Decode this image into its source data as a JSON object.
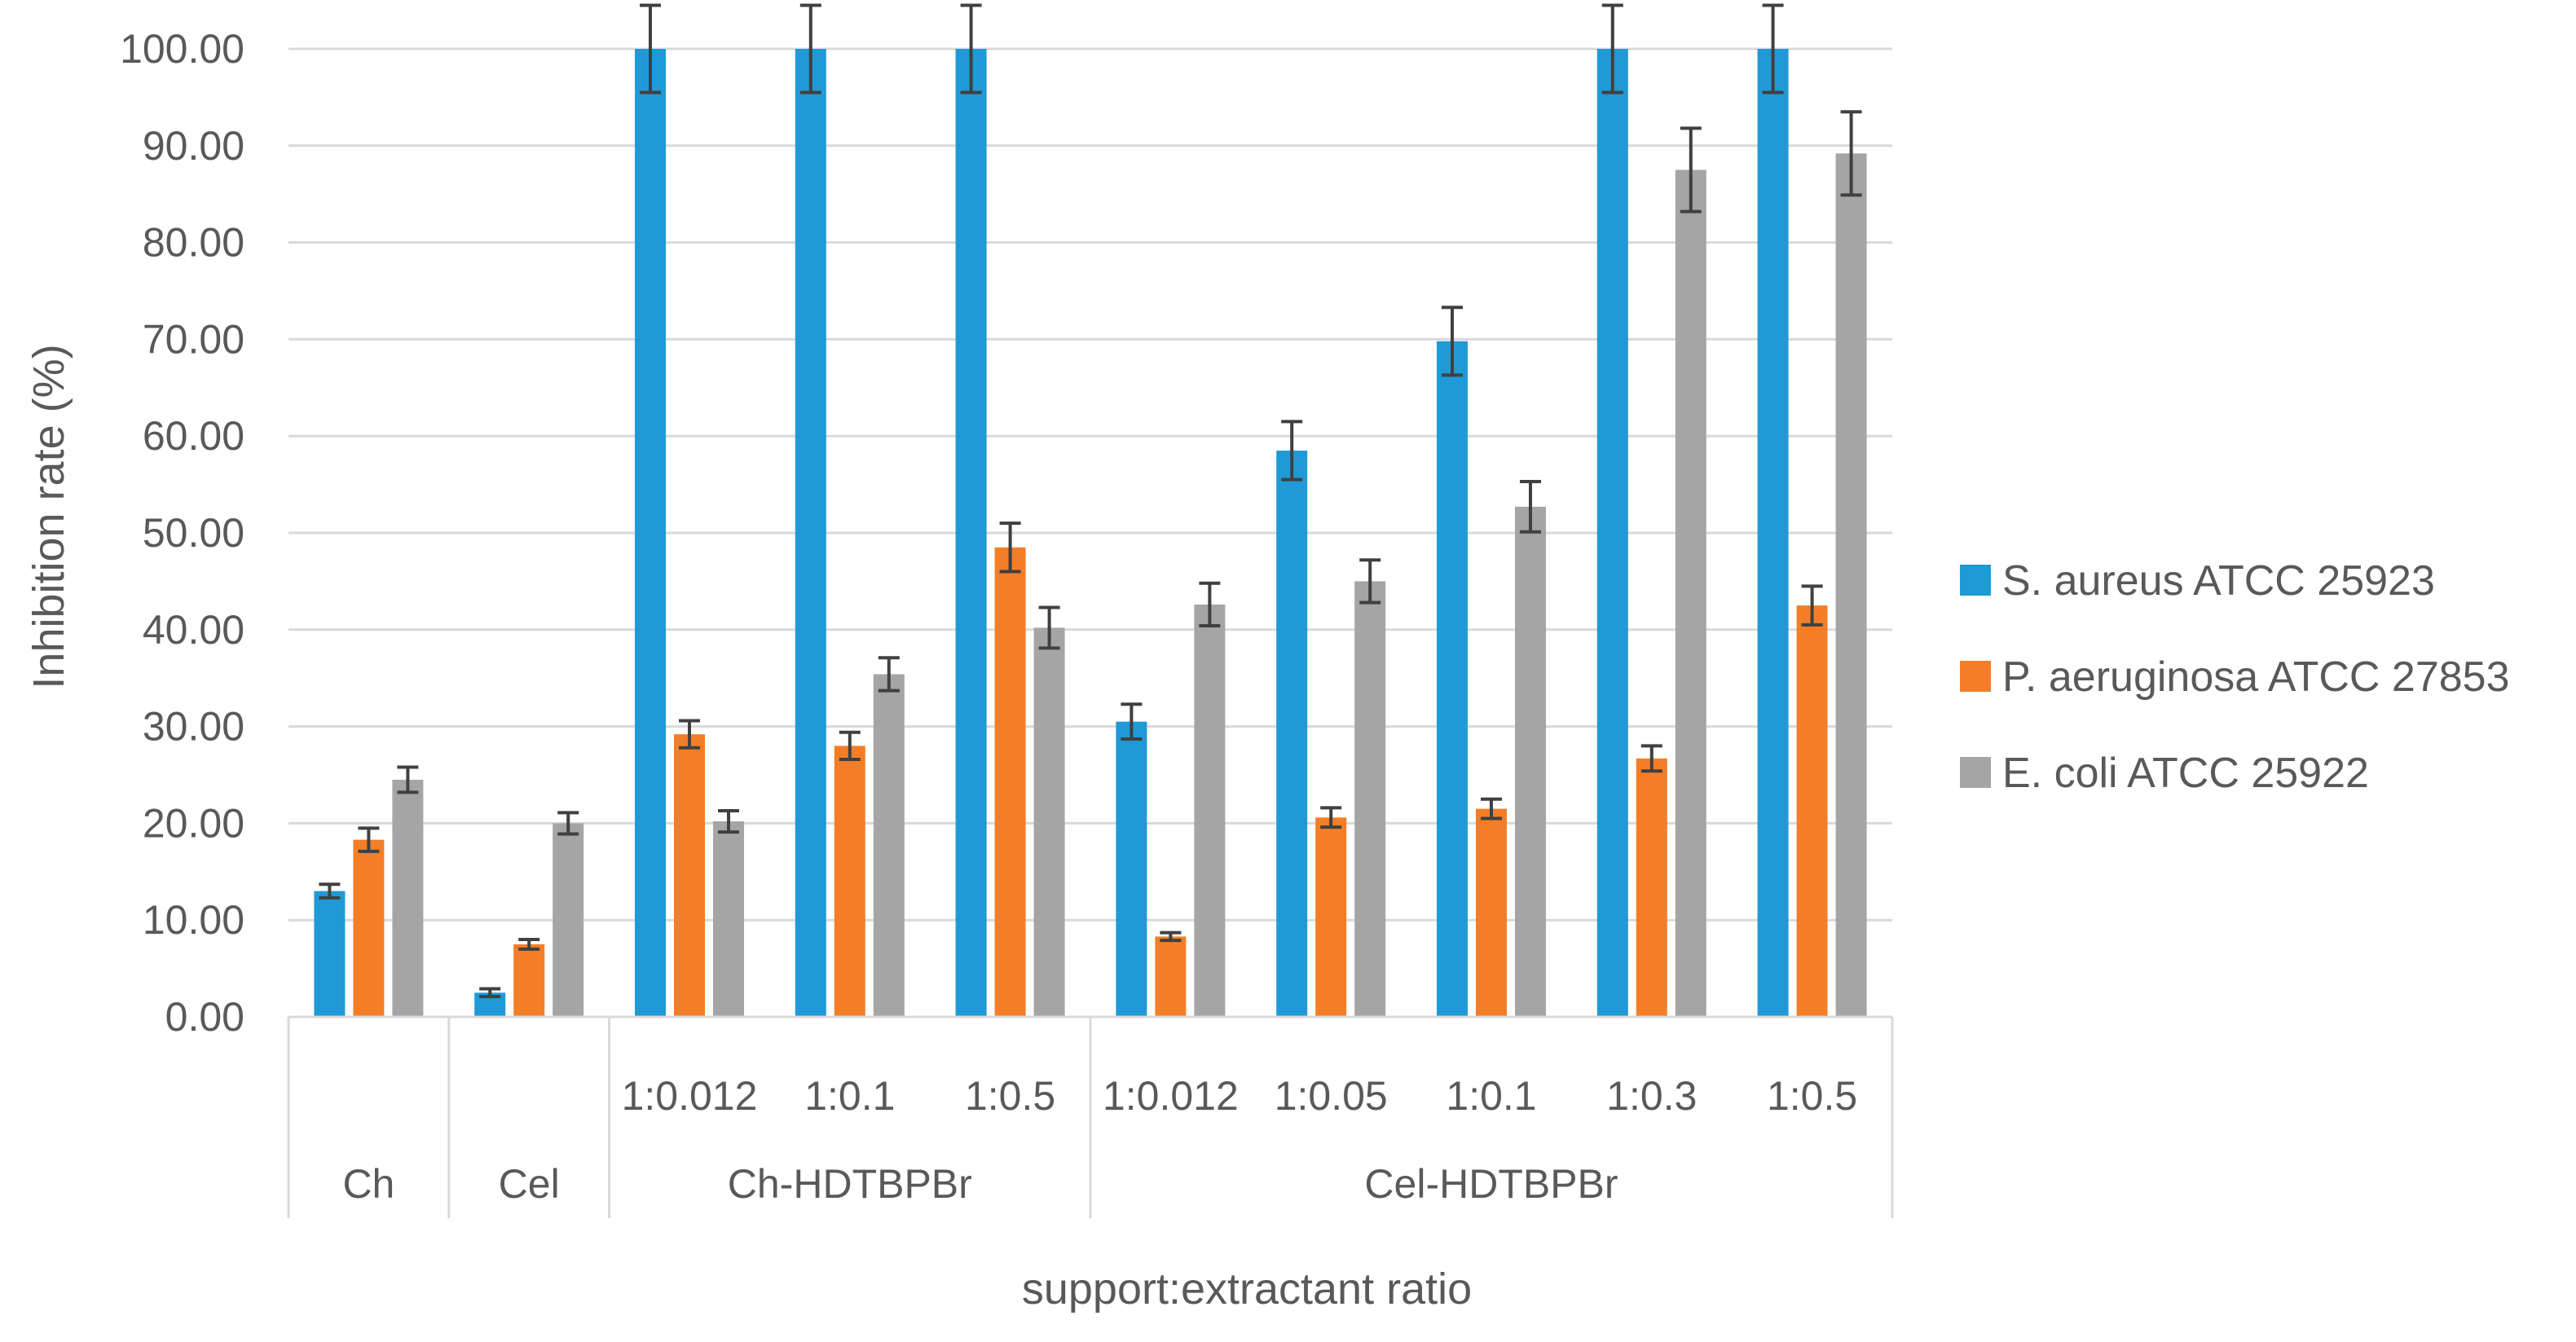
{
  "chart_data": {
    "type": "bar",
    "title": "",
    "ylabel": "Inhibition rate (%)",
    "xlabel": "support:extractant ratio",
    "ylim": [
      0,
      100
    ],
    "ytick_step": 10,
    "ytick_labels": [
      "0.00",
      "10.00",
      "20.00",
      "30.00",
      "40.00",
      "50.00",
      "60.00",
      "70.00",
      "80.00",
      "90.00",
      "100.00"
    ],
    "grid": true,
    "legend_position": "right",
    "groups": [
      {
        "name": "Ch",
        "categories": [
          ""
        ]
      },
      {
        "name": "Cel",
        "categories": [
          ""
        ]
      },
      {
        "name": "Ch-HDTBPBr",
        "categories": [
          "1:0.012",
          "1:0.1",
          "1:0.5"
        ]
      },
      {
        "name": "Cel-HDTBPBr",
        "categories": [
          "1:0.012",
          "1:0.05",
          "1:0.1",
          "1:0.3",
          "1:0.5"
        ]
      }
    ],
    "series": [
      {
        "name": "S. aureus ATCC 25923",
        "color": "#1f9ad6",
        "values": [
          13.0,
          2.5,
          100.0,
          100.0,
          100.0,
          30.5,
          58.5,
          69.8,
          100.0,
          100.0
        ],
        "errors": [
          0.7,
          0.4,
          4.5,
          4.5,
          4.5,
          1.8,
          3.0,
          3.5,
          4.5,
          4.5
        ]
      },
      {
        "name": "P. aeruginosa ATCC 27853",
        "color": "#f47e27",
        "values": [
          18.3,
          7.5,
          29.2,
          28.0,
          48.5,
          8.3,
          20.6,
          21.5,
          26.7,
          42.5
        ],
        "errors": [
          1.2,
          0.5,
          1.4,
          1.4,
          2.5,
          0.4,
          1.0,
          1.0,
          1.3,
          2.0
        ]
      },
      {
        "name": "E. coli ATCC 25922",
        "color": "#a5a5a5",
        "values": [
          24.5,
          20.0,
          20.2,
          35.4,
          40.2,
          42.6,
          45.0,
          52.7,
          87.5,
          89.2
        ],
        "errors": [
          1.3,
          1.1,
          1.1,
          1.7,
          2.1,
          2.2,
          2.2,
          2.6,
          4.3,
          4.3
        ]
      }
    ]
  }
}
